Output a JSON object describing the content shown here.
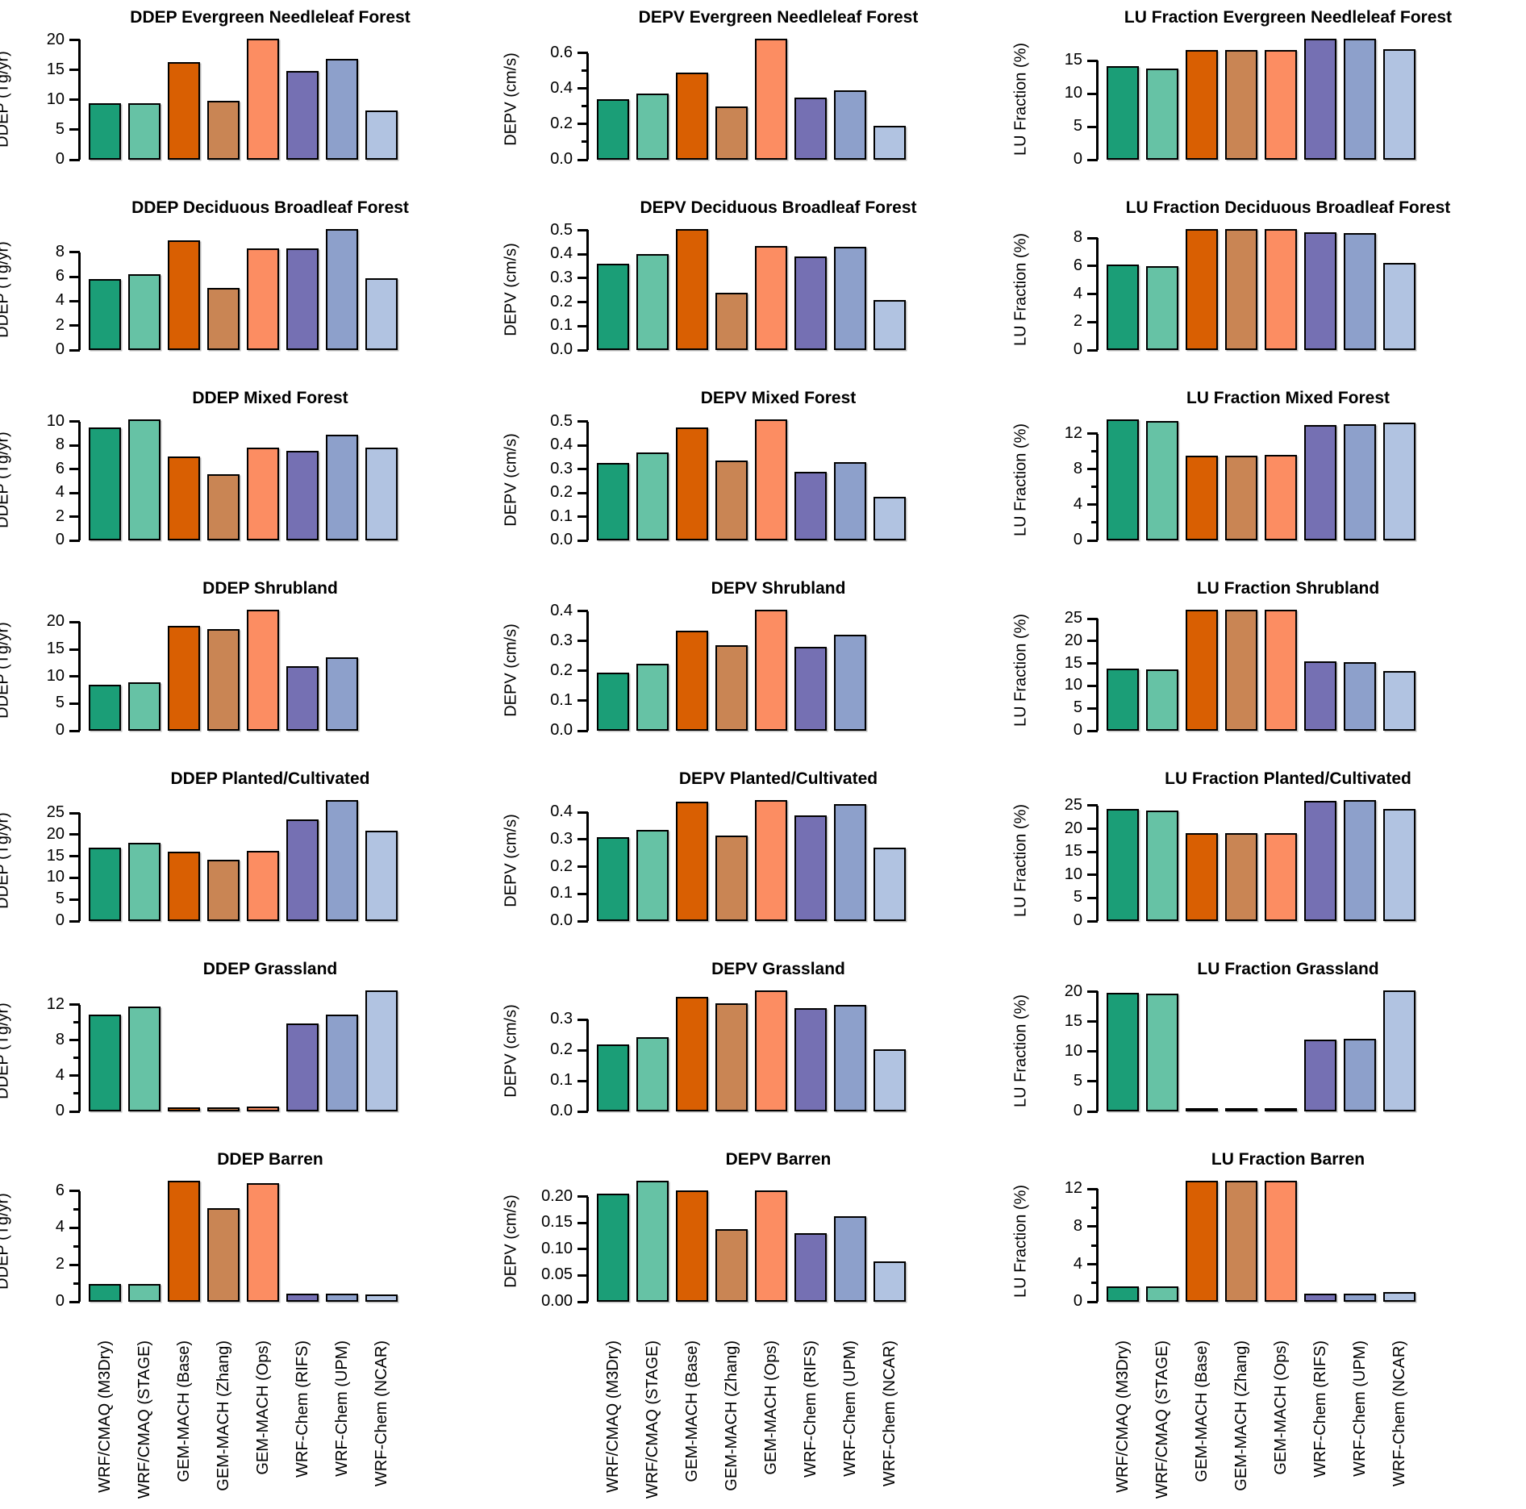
{
  "figure_title": "",
  "models": [
    "WRF/CMAQ (M3Dry)",
    "WRF/CMAQ (STAGE)",
    "GEM-MACH (Base)",
    "GEM-MACH (Zhang)",
    "GEM-MACH (Ops)",
    "WRF-Chem (RIFS)",
    "WRF-Chem (UPM)",
    "WRF-Chem (NCAR)"
  ],
  "bar_colors": [
    "#1b9e77",
    "#66c2a5",
    "#d95f02",
    "#c98554",
    "#fc8d62",
    "#7570b3",
    "#8da0cb",
    "#b1c3e1"
  ],
  "bar_border_color": "#000000",
  "background_color": "#ffffff",
  "land_uses": [
    "Evergreen Needleleaf Forest",
    "Deciduous Broadleaf Forest",
    "Mixed Forest",
    "Shrubland",
    "Planted/Cultivated",
    "Grassland",
    "Barren"
  ],
  "metrics": [
    "DDEP",
    "DEPV",
    "LU Fraction"
  ],
  "chart_data": {
    "type": "bar",
    "categories": [
      "WRF/CMAQ (M3Dry)",
      "WRF/CMAQ (STAGE)",
      "GEM-MACH (Base)",
      "GEM-MACH (Zhang)",
      "GEM-MACH (Ops)",
      "WRF-Chem (RIFS)",
      "WRF-Chem (UPM)",
      "WRF-Chem (NCAR)"
    ],
    "legend": "none",
    "grid": false,
    "charts": [
      {
        "title": "DDEP Evergreen Needleleaf Forest",
        "ylabel": "DDEP (Tg/yr)",
        "values": [
          9.4,
          9.4,
          16.3,
          9.8,
          20.2,
          14.8,
          16.9,
          8.2
        ],
        "yticks": [
          0,
          5,
          10,
          15,
          20
        ],
        "ytick_labels": [
          "0",
          "5",
          "10",
          "15",
          "20"
        ],
        "minor_yticks": []
      },
      {
        "title": "DEPV Evergreen Needleleaf Forest",
        "ylabel": "DEPV (cm/s)",
        "values": [
          0.34,
          0.37,
          0.49,
          0.3,
          0.68,
          0.35,
          0.39,
          0.19
        ],
        "yticks": [
          0,
          0.2,
          0.4,
          0.6
        ],
        "ytick_labels": [
          "0.0",
          "0.2",
          "0.4",
          "0.6"
        ],
        "minor_yticks": [
          0.1,
          0.3,
          0.5
        ]
      },
      {
        "title": "LU Fraction Evergreen Needleleaf Forest",
        "ylabel": "LU Fraction (%)",
        "values": [
          14.2,
          13.8,
          16.6,
          16.6,
          16.6,
          18.3,
          18.3,
          16.7
        ],
        "yticks": [
          0,
          5,
          10,
          15
        ],
        "ytick_labels": [
          "0",
          "5",
          "10",
          "15"
        ],
        "minor_yticks": []
      },
      {
        "title": "DDEP Deciduous Broadleaf Forest",
        "ylabel": "DDEP (Tg/yr)",
        "values": [
          5.8,
          6.2,
          9.0,
          5.1,
          8.3,
          8.3,
          9.9,
          5.9
        ],
        "yticks": [
          0,
          2,
          4,
          6,
          8
        ],
        "ytick_labels": [
          "0",
          "2",
          "4",
          "6",
          "8"
        ],
        "minor_yticks": []
      },
      {
        "title": "DEPV Deciduous Broadleaf Forest",
        "ylabel": "DEPV (cm/s)",
        "values": [
          0.36,
          0.4,
          0.505,
          0.24,
          0.435,
          0.39,
          0.43,
          0.21
        ],
        "yticks": [
          0,
          0.1,
          0.2,
          0.3,
          0.4,
          0.5
        ],
        "ytick_labels": [
          "0.0",
          "0.1",
          "0.2",
          "0.3",
          "0.4",
          "0.5"
        ],
        "minor_yticks": []
      },
      {
        "title": "LU Fraction Deciduous Broadleaf Forest",
        "ylabel": "LU Fraction (%)",
        "values": [
          6.1,
          6.0,
          8.65,
          8.65,
          8.65,
          8.4,
          8.35,
          6.2
        ],
        "yticks": [
          0,
          2,
          4,
          6,
          8
        ],
        "ytick_labels": [
          "0",
          "2",
          "4",
          "6",
          "8"
        ],
        "minor_yticks": []
      },
      {
        "title": "DDEP Mixed Forest",
        "ylabel": "DDEP (Tg/yr)",
        "values": [
          9.55,
          10.2,
          7.1,
          5.6,
          7.85,
          7.55,
          8.9,
          7.8
        ],
        "yticks": [
          0,
          2,
          4,
          6,
          8,
          10
        ],
        "ytick_labels": [
          "0",
          "2",
          "4",
          "6",
          "8",
          "10"
        ],
        "minor_yticks": []
      },
      {
        "title": "DEPV Mixed Forest",
        "ylabel": "DEPV (cm/s)",
        "values": [
          0.325,
          0.37,
          0.475,
          0.335,
          0.51,
          0.29,
          0.33,
          0.185
        ],
        "yticks": [
          0,
          0.1,
          0.2,
          0.3,
          0.4,
          0.5
        ],
        "ytick_labels": [
          "0.0",
          "0.1",
          "0.2",
          "0.3",
          "0.4",
          "0.5"
        ],
        "minor_yticks": []
      },
      {
        "title": "LU Fraction Mixed Forest",
        "ylabel": "LU Fraction (%)",
        "values": [
          13.6,
          13.4,
          9.5,
          9.5,
          9.6,
          13.0,
          13.1,
          13.2
        ],
        "yticks": [
          0,
          4,
          8,
          12
        ],
        "ytick_labels": [
          "0",
          "4",
          "8",
          "12"
        ],
        "minor_yticks": [
          2,
          6,
          10
        ]
      },
      {
        "title": "DDEP Shrubland",
        "ylabel": "DDEP (Tg/yr)",
        "values": [
          8.4,
          8.9,
          19.4,
          18.8,
          22.3,
          11.9,
          13.6,
          null
        ],
        "yticks": [
          0,
          5,
          10,
          15,
          20
        ],
        "ytick_labels": [
          "0",
          "5",
          "10",
          "15",
          "20"
        ],
        "minor_yticks": []
      },
      {
        "title": "DEPV Shrubland",
        "ylabel": "DEPV (cm/s)",
        "values": [
          0.195,
          0.225,
          0.335,
          0.285,
          0.405,
          0.28,
          0.32,
          null
        ],
        "yticks": [
          0,
          0.1,
          0.2,
          0.3,
          0.4
        ],
        "ytick_labels": [
          "0.0",
          "0.1",
          "0.2",
          "0.3",
          "0.4"
        ],
        "minor_yticks": []
      },
      {
        "title": "LU Fraction Shrubland",
        "ylabel": "LU Fraction (%)",
        "values": [
          13.9,
          13.7,
          27.0,
          27.0,
          27.0,
          15.4,
          15.3,
          13.3
        ],
        "yticks": [
          0,
          5,
          10,
          15,
          20,
          25
        ],
        "ytick_labels": [
          "0",
          "5",
          "10",
          "15",
          "20",
          "25"
        ],
        "minor_yticks": []
      },
      {
        "title": "DDEP Planted/Cultivated",
        "ylabel": "DDEP (Tg/yr)",
        "values": [
          17.0,
          18.1,
          16.1,
          14.2,
          16.2,
          23.5,
          28.0,
          21.0
        ],
        "yticks": [
          0,
          5,
          10,
          15,
          20,
          25
        ],
        "ytick_labels": [
          "0",
          "5",
          "10",
          "15",
          "20",
          "25"
        ],
        "minor_yticks": []
      },
      {
        "title": "DEPV Planted/Cultivated",
        "ylabel": "DEPV (cm/s)",
        "values": [
          0.31,
          0.335,
          0.44,
          0.315,
          0.445,
          0.39,
          0.43,
          0.27
        ],
        "yticks": [
          0,
          0.1,
          0.2,
          0.3,
          0.4
        ],
        "ytick_labels": [
          "0.0",
          "0.1",
          "0.2",
          "0.3",
          "0.4"
        ],
        "minor_yticks": []
      },
      {
        "title": "LU Fraction Planted/Cultivated",
        "ylabel": "LU Fraction (%)",
        "values": [
          24.2,
          23.9,
          19.0,
          19.0,
          19.0,
          26.1,
          26.2,
          24.3
        ],
        "yticks": [
          0,
          5,
          10,
          15,
          20,
          25
        ],
        "ytick_labels": [
          "0",
          "5",
          "10",
          "15",
          "20",
          "25"
        ],
        "minor_yticks": []
      },
      {
        "title": "DDEP Grassland",
        "ylabel": "DDEP (Tg/yr)",
        "values": [
          10.9,
          11.8,
          0.45,
          0.45,
          0.5,
          9.9,
          10.9,
          13.6
        ],
        "yticks": [
          0,
          4,
          8,
          12
        ],
        "ytick_labels": [
          "0",
          "4",
          "8",
          "12"
        ],
        "minor_yticks": [
          2,
          6,
          10
        ]
      },
      {
        "title": "DEPV Grassland",
        "ylabel": "DEPV (cm/s)",
        "values": [
          0.218,
          0.243,
          0.373,
          0.354,
          0.395,
          0.336,
          0.348,
          0.203
        ],
        "yticks": [
          0,
          0.1,
          0.2,
          0.3
        ],
        "ytick_labels": [
          "0.0",
          "0.1",
          "0.2",
          "0.3"
        ],
        "minor_yticks": []
      },
      {
        "title": "LU Fraction Grassland",
        "ylabel": "LU Fraction (%)",
        "values": [
          19.8,
          19.7,
          0.6,
          0.6,
          0.6,
          12.0,
          12.1,
          20.2
        ],
        "yticks": [
          0,
          5,
          10,
          15,
          20
        ],
        "ytick_labels": [
          "0",
          "5",
          "10",
          "15",
          "20"
        ],
        "minor_yticks": []
      },
      {
        "title": "DDEP Barren",
        "ylabel": "DDEP (Tg/yr)",
        "values": [
          0.95,
          0.97,
          6.55,
          5.05,
          6.4,
          0.45,
          0.45,
          0.4
        ],
        "yticks": [
          0,
          2,
          4,
          6
        ],
        "ytick_labels": [
          "0",
          "2",
          "4",
          "6"
        ],
        "minor_yticks": [
          1,
          3,
          5
        ]
      },
      {
        "title": "DEPV Barren",
        "ylabel": "DEPV (cm/s)",
        "values": [
          0.205,
          0.23,
          0.212,
          0.138,
          0.212,
          0.13,
          0.163,
          0.077
        ],
        "yticks": [
          0,
          0.05,
          0.1,
          0.15,
          0.2
        ],
        "ytick_labels": [
          "0.00",
          "0.05",
          "0.10",
          "0.15",
          "0.20"
        ],
        "minor_yticks": []
      },
      {
        "title": "LU Fraction Barren",
        "ylabel": "LU Fraction (%)",
        "values": [
          1.6,
          1.6,
          12.9,
          12.9,
          12.9,
          0.9,
          0.9,
          1.0
        ],
        "yticks": [
          0,
          4,
          8,
          12
        ],
        "ytick_labels": [
          "0",
          "4",
          "8",
          "12"
        ],
        "minor_yticks": [
          2,
          6,
          10
        ]
      }
    ]
  }
}
